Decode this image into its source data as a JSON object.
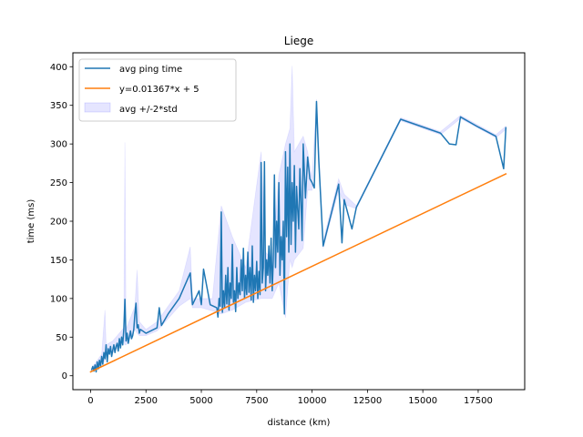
{
  "chart_data": {
    "type": "line",
    "title": "Liege",
    "xlabel": "distance (km)",
    "ylabel": "time (ms)",
    "xlim": [
      -800,
      19600
    ],
    "ylim": [
      -18,
      418
    ],
    "xticks": [
      0,
      2500,
      5000,
      7500,
      10000,
      12500,
      15000,
      17500
    ],
    "yticks": [
      0,
      50,
      100,
      150,
      200,
      250,
      300,
      350,
      400
    ],
    "grid": false,
    "legend_position": "upper-left",
    "series": [
      {
        "name": "avg ping time",
        "type": "line",
        "color": "#1f77b4",
        "points": [
          [
            50,
            8
          ],
          [
            100,
            12
          ],
          [
            150,
            6
          ],
          [
            200,
            14
          ],
          [
            250,
            5
          ],
          [
            300,
            18
          ],
          [
            350,
            9
          ],
          [
            400,
            20
          ],
          [
            450,
            12
          ],
          [
            500,
            25
          ],
          [
            550,
            15
          ],
          [
            600,
            30
          ],
          [
            650,
            22
          ],
          [
            700,
            40
          ],
          [
            750,
            18
          ],
          [
            800,
            35
          ],
          [
            850,
            28
          ],
          [
            900,
            38
          ],
          [
            950,
            25
          ],
          [
            1000,
            33
          ],
          [
            1050,
            40
          ],
          [
            1100,
            30
          ],
          [
            1150,
            38
          ],
          [
            1200,
            42
          ],
          [
            1250,
            32
          ],
          [
            1300,
            48
          ],
          [
            1350,
            36
          ],
          [
            1400,
            50
          ],
          [
            1450,
            40
          ],
          [
            1500,
            60
          ],
          [
            1550,
            99
          ],
          [
            1600,
            45
          ],
          [
            1650,
            55
          ],
          [
            1700,
            42
          ],
          [
            1750,
            50
          ],
          [
            1800,
            58
          ],
          [
            1850,
            48
          ],
          [
            1900,
            52
          ],
          [
            1950,
            60
          ],
          [
            2000,
            80
          ],
          [
            2050,
            94
          ],
          [
            2100,
            62
          ],
          [
            2150,
            66
          ],
          [
            2200,
            55
          ],
          [
            2250,
            60
          ],
          [
            2500,
            55
          ],
          [
            3000,
            62
          ],
          [
            3100,
            88
          ],
          [
            3200,
            65
          ],
          [
            3500,
            80
          ],
          [
            4000,
            100
          ],
          [
            4500,
            133
          ],
          [
            4600,
            92
          ],
          [
            4900,
            110
          ],
          [
            5000,
            92
          ],
          [
            5100,
            138
          ],
          [
            5400,
            92
          ],
          [
            5700,
            88
          ],
          [
            5750,
            76
          ],
          [
            5800,
            100
          ],
          [
            5850,
            90
          ],
          [
            5900,
            212
          ],
          [
            5950,
            82
          ],
          [
            6000,
            110
          ],
          [
            6050,
            88
          ],
          [
            6100,
            130
          ],
          [
            6150,
            93
          ],
          [
            6200,
            140
          ],
          [
            6250,
            85
          ],
          [
            6300,
            120
          ],
          [
            6350,
            100
          ],
          [
            6400,
            170
          ],
          [
            6450,
            95
          ],
          [
            6500,
            110
          ],
          [
            6550,
            83
          ],
          [
            6600,
            140
          ],
          [
            6650,
            100
          ],
          [
            6700,
            120
          ],
          [
            6750,
            105
          ],
          [
            6800,
            150
          ],
          [
            6850,
            110
          ],
          [
            6900,
            165
          ],
          [
            6950,
            100
          ],
          [
            7000,
            130
          ],
          [
            7050,
            105
          ],
          [
            7100,
            160
          ],
          [
            7150,
            108
          ],
          [
            7200,
            140
          ],
          [
            7250,
            98
          ],
          [
            7300,
            168
          ],
          [
            7350,
            95
          ],
          [
            7400,
            130
          ],
          [
            7450,
            110
          ],
          [
            7500,
            148
          ],
          [
            7550,
            100
          ],
          [
            7600,
            135
          ],
          [
            7650,
            105
          ],
          [
            7700,
            276
          ],
          [
            7750,
            120
          ],
          [
            7800,
            140
          ],
          [
            7850,
            277
          ],
          [
            7900,
            110
          ],
          [
            7950,
            150
          ],
          [
            8000,
            130
          ],
          [
            8050,
            168
          ],
          [
            8100,
            120
          ],
          [
            8150,
            178
          ],
          [
            8200,
            110
          ],
          [
            8250,
            150
          ],
          [
            8300,
            260
          ],
          [
            8350,
            140
          ],
          [
            8400,
            200
          ],
          [
            8450,
            160
          ],
          [
            8500,
            250
          ],
          [
            8550,
            130
          ],
          [
            8600,
            180
          ],
          [
            8650,
            150
          ],
          [
            8700,
            200
          ],
          [
            8750,
            80
          ],
          [
            8800,
            290
          ],
          [
            8850,
            180
          ],
          [
            8900,
            270
          ],
          [
            8950,
            160
          ],
          [
            9000,
            300
          ],
          [
            9050,
            170
          ],
          [
            9100,
            250
          ],
          [
            9150,
            200
          ],
          [
            9200,
            272
          ],
          [
            9250,
            160
          ],
          [
            9300,
            245
          ],
          [
            9350,
            215
          ],
          [
            9400,
            190
          ],
          [
            9450,
            268
          ],
          [
            9500,
            225
          ],
          [
            9550,
            175
          ],
          [
            9600,
            300
          ],
          [
            9700,
            230
          ],
          [
            9800,
            283
          ],
          [
            9900,
            255
          ],
          [
            10000,
            250
          ],
          [
            10100,
            243
          ],
          [
            10200,
            355
          ],
          [
            10300,
            280
          ],
          [
            10500,
            168
          ],
          [
            11200,
            248
          ],
          [
            11350,
            172
          ],
          [
            11450,
            228
          ],
          [
            11800,
            190
          ],
          [
            12000,
            218
          ],
          [
            14000,
            332
          ],
          [
            15800,
            314
          ],
          [
            16200,
            300
          ],
          [
            16500,
            299
          ],
          [
            16700,
            335
          ],
          [
            17500,
            322
          ],
          [
            18300,
            310
          ],
          [
            18650,
            268
          ],
          [
            18750,
            321
          ]
        ]
      },
      {
        "name": "y=0.01367*x + 5",
        "type": "line",
        "color": "#ff7f0e",
        "points": [
          [
            0,
            5
          ],
          [
            18750,
            261.3
          ]
        ]
      },
      {
        "name": "avg +/-2*std",
        "type": "band",
        "color": "#0000ff",
        "opacity": 0.1,
        "upper": [
          [
            50,
            10
          ],
          [
            500,
            28
          ],
          [
            650,
            85
          ],
          [
            700,
            40
          ],
          [
            1000,
            45
          ],
          [
            1500,
            62
          ],
          [
            1550,
            302
          ],
          [
            1600,
            60
          ],
          [
            2000,
            90
          ],
          [
            2100,
            137
          ],
          [
            2200,
            70
          ],
          [
            2500,
            60
          ],
          [
            3000,
            70
          ],
          [
            4000,
            110
          ],
          [
            4500,
            167
          ],
          [
            4600,
            100
          ],
          [
            5000,
            100
          ],
          [
            5500,
            100
          ],
          [
            5900,
            220
          ],
          [
            6400,
            180
          ],
          [
            7000,
            140
          ],
          [
            7700,
            290
          ],
          [
            7900,
            160
          ],
          [
            8200,
            150
          ],
          [
            8500,
            260
          ],
          [
            8800,
            300
          ],
          [
            9000,
            320
          ],
          [
            9100,
            401
          ],
          [
            9200,
            290
          ],
          [
            9600,
            310
          ],
          [
            9800,
            290
          ],
          [
            10000,
            255
          ],
          [
            10200,
            358
          ],
          [
            10500,
            175
          ],
          [
            11200,
            255
          ],
          [
            11450,
            235
          ],
          [
            12000,
            220
          ],
          [
            14000,
            334
          ],
          [
            15800,
            316
          ],
          [
            16700,
            337
          ],
          [
            18300,
            312
          ],
          [
            18750,
            323
          ]
        ],
        "lower": [
          [
            50,
            6
          ],
          [
            500,
            22
          ],
          [
            650,
            18
          ],
          [
            700,
            35
          ],
          [
            1000,
            30
          ],
          [
            1500,
            45
          ],
          [
            1550,
            40
          ],
          [
            1600,
            40
          ],
          [
            2000,
            60
          ],
          [
            2100,
            55
          ],
          [
            2200,
            52
          ],
          [
            2500,
            52
          ],
          [
            3000,
            58
          ],
          [
            4000,
            90
          ],
          [
            4500,
            100
          ],
          [
            4600,
            88
          ],
          [
            5000,
            88
          ],
          [
            5500,
            84
          ],
          [
            5900,
            80
          ],
          [
            6400,
            85
          ],
          [
            7000,
            95
          ],
          [
            7700,
            100
          ],
          [
            7900,
            100
          ],
          [
            8200,
            100
          ],
          [
            8500,
            120
          ],
          [
            8800,
            75
          ],
          [
            9000,
            150
          ],
          [
            9100,
            140
          ],
          [
            9200,
            150
          ],
          [
            9600,
            165
          ],
          [
            9800,
            240
          ],
          [
            10000,
            240
          ],
          [
            10200,
            352
          ],
          [
            10500,
            165
          ],
          [
            11200,
            240
          ],
          [
            11450,
            222
          ],
          [
            12000,
            216
          ],
          [
            14000,
            330
          ],
          [
            15800,
            312
          ],
          [
            16700,
            333
          ],
          [
            18300,
            308
          ],
          [
            18750,
            319
          ]
        ]
      }
    ]
  }
}
